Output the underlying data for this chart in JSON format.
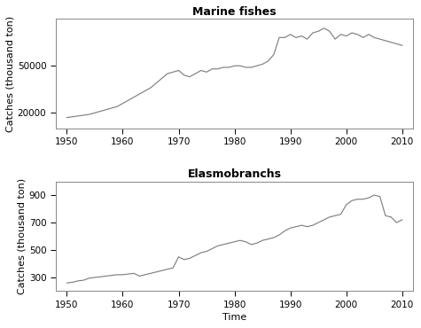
{
  "title1": "Marine fishes",
  "title2": "Elasmobranchs",
  "xlabel": "Time",
  "ylabel": "Catches (thousand ton)",
  "marine_years": [
    1950,
    1951,
    1952,
    1953,
    1954,
    1955,
    1956,
    1957,
    1958,
    1959,
    1960,
    1961,
    1962,
    1963,
    1964,
    1965,
    1966,
    1967,
    1968,
    1969,
    1970,
    1971,
    1972,
    1973,
    1974,
    1975,
    1976,
    1977,
    1978,
    1979,
    1980,
    1981,
    1982,
    1983,
    1984,
    1985,
    1986,
    1987,
    1988,
    1989,
    1990,
    1991,
    1992,
    1993,
    1994,
    1995,
    1996,
    1997,
    1998,
    1999,
    2000,
    2001,
    2002,
    2003,
    2004,
    2005,
    2006,
    2007,
    2008,
    2009,
    2010
  ],
  "marine_catches": [
    17000,
    17500,
    18000,
    18500,
    19000,
    20000,
    21000,
    22000,
    23000,
    24000,
    26000,
    28000,
    30000,
    32000,
    34000,
    36000,
    39000,
    42000,
    45000,
    46000,
    47000,
    44000,
    43000,
    45000,
    47000,
    46000,
    48000,
    48000,
    49000,
    49000,
    50000,
    50000,
    49000,
    49000,
    50000,
    51000,
    53000,
    57000,
    68000,
    68000,
    70000,
    68000,
    69000,
    67000,
    71000,
    72000,
    74000,
    72000,
    67000,
    70000,
    69000,
    71000,
    70000,
    68000,
    70000,
    68000,
    67000,
    66000,
    65000,
    64000,
    63000
  ],
  "elasmo_years": [
    1950,
    1951,
    1952,
    1953,
    1954,
    1955,
    1956,
    1957,
    1958,
    1959,
    1960,
    1961,
    1962,
    1963,
    1964,
    1965,
    1966,
    1967,
    1968,
    1969,
    1970,
    1971,
    1972,
    1973,
    1974,
    1975,
    1976,
    1977,
    1978,
    1979,
    1980,
    1981,
    1982,
    1983,
    1984,
    1985,
    1986,
    1987,
    1988,
    1989,
    1990,
    1991,
    1992,
    1993,
    1994,
    1995,
    1996,
    1997,
    1998,
    1999,
    2000,
    2001,
    2002,
    2003,
    2004,
    2005,
    2006,
    2007,
    2008,
    2009,
    2010
  ],
  "elasmo_catches": [
    260,
    265,
    275,
    280,
    295,
    300,
    305,
    310,
    315,
    320,
    320,
    325,
    330,
    310,
    320,
    330,
    340,
    350,
    360,
    370,
    450,
    430,
    440,
    460,
    480,
    490,
    510,
    530,
    540,
    550,
    560,
    570,
    560,
    540,
    550,
    570,
    580,
    590,
    610,
    640,
    660,
    670,
    680,
    670,
    680,
    700,
    720,
    740,
    750,
    760,
    830,
    860,
    870,
    870,
    880,
    900,
    890,
    750,
    740,
    700,
    720
  ],
  "marine_ylim": [
    10000,
    80000
  ],
  "marine_yticks": [
    20000,
    50000
  ],
  "elasmo_ylim": [
    200,
    1000
  ],
  "elasmo_yticks": [
    300,
    500,
    700,
    900
  ],
  "xticks": [
    1950,
    1960,
    1970,
    1980,
    1990,
    2000,
    2010
  ],
  "xlim": [
    1948,
    2012
  ],
  "line_color": "#808080",
  "bg_color": "#ffffff",
  "plot_bg": "#ffffff",
  "spine_color": "#888888",
  "title_fontsize": 9,
  "label_fontsize": 8,
  "tick_fontsize": 7.5
}
